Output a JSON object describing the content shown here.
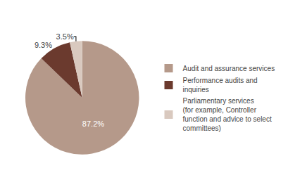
{
  "chart_data": {
    "type": "pie",
    "categories": [
      "Audit and assurance services",
      "Performance audits and\ninquiries",
      "Parliamentary services\n(for example, Controller\nfunction and advice to select\ncommittees)"
    ],
    "values": [
      87.2,
      9.3,
      3.5
    ],
    "value_labels": [
      "87.2%",
      "9.3%",
      "3.5%"
    ],
    "colors": [
      "#b5998a",
      "#6b3a2e",
      "#d9c9bf"
    ],
    "data_labels": true,
    "legend": "right"
  }
}
